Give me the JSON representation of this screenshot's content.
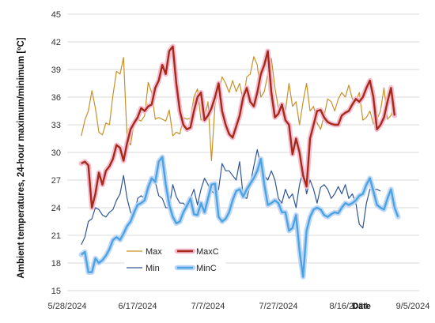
{
  "chart_data": {
    "type": "line",
    "title": "",
    "xlabel": "Date",
    "ylabel": "Ambient temperatures, 24-hour maximum/minimum [ºC]",
    "x_ticks": [
      "5/28/2024",
      "6/17/2024",
      "7/7/2024",
      "7/27/2024",
      "8/16/2024",
      "9/5/2024"
    ],
    "x_range": [
      "2024-05-28",
      "2024-09-05"
    ],
    "ylim": [
      15,
      45
    ],
    "y_ticks": [
      15,
      18,
      21,
      24,
      27,
      30,
      33,
      36,
      39,
      42,
      45
    ],
    "grid": "horizontal",
    "legend_position": "bottom-center",
    "x_start": "2024-06-01",
    "x_step_days": 1,
    "series": [
      {
        "name": "Max",
        "color": "#C8902A",
        "style": "thin",
        "values": [
          31.8,
          33.5,
          34.5,
          36.7,
          34.8,
          32.2,
          31.9,
          33.2,
          33.0,
          36.2,
          38.8,
          38.5,
          40.3,
          31.5,
          30.8,
          33.3,
          33.6,
          33.4,
          34.0,
          37.6,
          36.5,
          33.6,
          33.8,
          33.6,
          33.4,
          34.6,
          31.8,
          32.2,
          32.0,
          33.8,
          33.6,
          33.7,
          36.0,
          36.9,
          33.5,
          33.8,
          35.5,
          29.1,
          35.2,
          36.5,
          38.2,
          37.5,
          36.5,
          37.8,
          36.6,
          37.5,
          35.5,
          38.2,
          38.5,
          40.4,
          39.5,
          36.0,
          36.6,
          38.5,
          40.2,
          37.0,
          34.8,
          34.5,
          34.5,
          37.5,
          35.0,
          35.5,
          33.0,
          35.5,
          37.5,
          34.5,
          35.0,
          33.2,
          32.5,
          34.0,
          35.8,
          35.5,
          34.5,
          35.8,
          36.5,
          36.0,
          37.3,
          35.8,
          35.5,
          36.5,
          33.5,
          33.8,
          34.5,
          33.1,
          33.6,
          34.5,
          37.0,
          33.6,
          34.0,
          35.5
        ]
      },
      {
        "name": "MaxC",
        "color": "#A52A1A",
        "style": "thick",
        "values": [
          28.8,
          29.0,
          28.6,
          24.0,
          25.5,
          27.8,
          26.5,
          28.0,
          28.5,
          29.3,
          30.8,
          30.5,
          29.1,
          31.0,
          32.5,
          33.2,
          33.8,
          34.8,
          34.5,
          35.0,
          35.2,
          37.0,
          37.8,
          39.5,
          38.5,
          41.0,
          41.5,
          37.5,
          34.5,
          33.0,
          32.5,
          32.7,
          34.5,
          36.0,
          36.5,
          33.5,
          34.0,
          34.8,
          36.0,
          37.5,
          34.5,
          33.0,
          32.0,
          31.6,
          32.8,
          34.0,
          36.0,
          37.0,
          35.5,
          35.0,
          36.5,
          38.5,
          39.5,
          41.0,
          36.5,
          33.8,
          34.2,
          35.2,
          33.5,
          33.0,
          29.8,
          31.5,
          30.0,
          27.5,
          26.3,
          31.5,
          33.0,
          34.5,
          34.6,
          33.8,
          33.3,
          33.1,
          33.0,
          33.0,
          34.0,
          34.3,
          34.5,
          35.2,
          35.8,
          35.5,
          36.0,
          37.0,
          37.8,
          36.0,
          32.5,
          33.0,
          33.8,
          35.5,
          37.0,
          34.0
        ]
      },
      {
        "name": "Min",
        "color": "#2E5596",
        "style": "thin",
        "values": [
          20.0,
          20.8,
          22.5,
          22.8,
          24.0,
          23.8,
          23.2,
          23.0,
          23.5,
          23.8,
          24.8,
          25.5,
          27.5,
          25.0,
          23.5,
          23.0,
          25.0,
          25.3,
          25.0,
          26.5,
          27.0,
          26.8,
          25.3,
          25.0,
          24.0,
          24.0,
          26.5,
          25.2,
          24.5,
          24.5,
          24.0,
          25.0,
          26.0,
          24.3,
          26.0,
          27.2,
          26.5,
          25.8,
          25.5,
          26.0,
          28.8,
          28.0,
          28.0,
          27.5,
          27.0,
          29.0,
          25.2,
          25.0,
          26.5,
          28.5,
          30.3,
          28.5,
          27.5,
          27.0,
          28.0,
          27.0,
          25.0,
          24.5,
          26.0,
          25.0,
          25.5,
          24.0,
          26.5,
          28.0,
          25.5,
          27.0,
          26.0,
          24.5,
          26.2,
          26.5,
          26.0,
          25.0,
          25.5,
          26.3,
          25.5,
          26.5,
          25.0,
          25.5,
          24.5,
          22.2,
          21.8,
          24.5,
          26.0,
          26.0,
          26.0,
          25.8
        ]
      },
      {
        "name": "MinC",
        "color": "#4BA3E3",
        "style": "thick",
        "values": [
          18.9,
          19.2,
          17.0,
          17.0,
          18.5,
          18.0,
          18.3,
          18.8,
          19.5,
          20.5,
          20.8,
          20.5,
          21.2,
          22.0,
          22.5,
          23.5,
          24.3,
          24.5,
          24.8,
          26.2,
          27.2,
          26.8,
          29.0,
          29.5,
          26.5,
          24.3,
          23.0,
          22.3,
          22.5,
          23.5,
          24.2,
          25.0,
          23.3,
          23.2,
          24.5,
          23.5,
          25.0,
          26.5,
          26.6,
          23.0,
          22.5,
          22.8,
          23.5,
          24.8,
          25.8,
          26.0,
          25.2,
          26.0,
          26.6,
          27.2,
          28.0,
          29.3,
          26.5,
          24.3,
          24.5,
          24.8,
          24.5,
          23.5,
          23.5,
          21.5,
          21.8,
          23.2,
          19.3,
          16.5,
          21.5,
          23.0,
          23.8,
          24.0,
          23.8,
          23.2,
          23.0,
          23.3,
          23.5,
          23.4,
          24.0,
          24.5,
          24.3,
          24.5,
          24.8,
          25.3,
          25.5,
          26.5,
          27.2,
          25.8,
          24.3,
          24.0,
          23.8,
          25.0,
          26.0,
          24.0,
          23.0
        ]
      }
    ]
  }
}
